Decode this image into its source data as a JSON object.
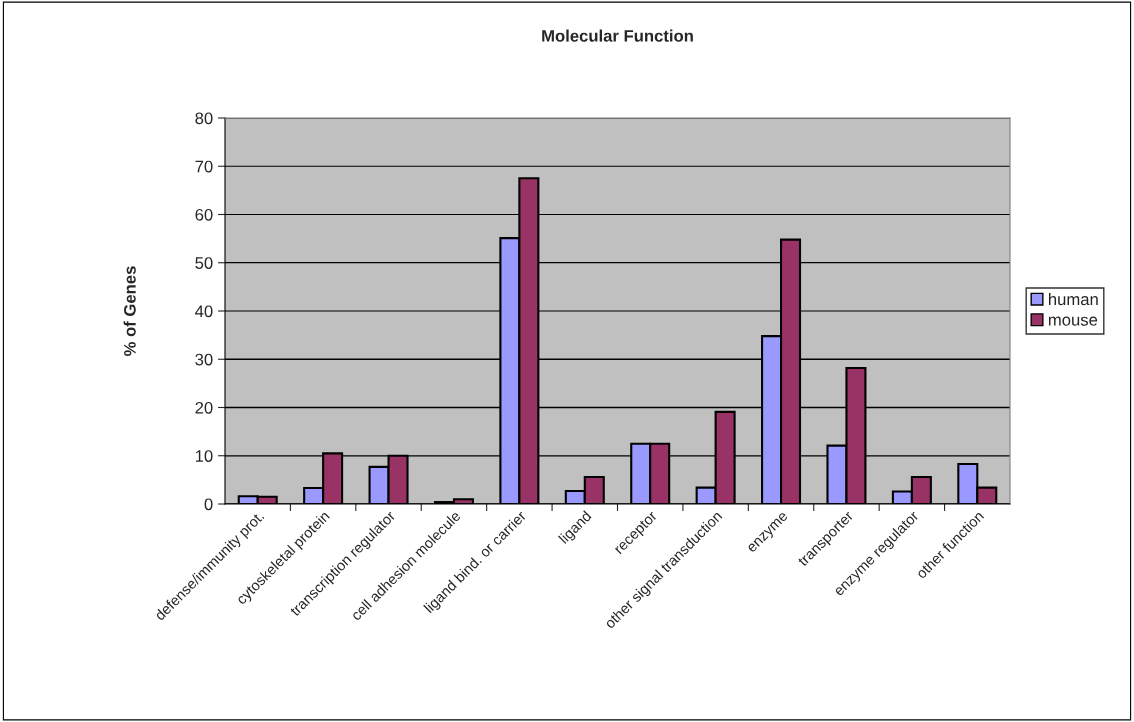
{
  "chart_data": {
    "type": "bar",
    "title": "Molecular Function",
    "ylabel": "% of Genes",
    "categories": [
      "defense/immunity prot.",
      "cytoskeletal protein",
      "transcription regulator",
      "cell adhesion molecule",
      "ligand bind. or carrier",
      "ligand",
      "receptor",
      "other signal transduction",
      "enzyme",
      "transporter",
      "enzyme regulator",
      "other function"
    ],
    "series": [
      {
        "name": "human",
        "color": "#9999ff",
        "values": [
          1.6,
          3.3,
          7.7,
          0.4,
          55.1,
          2.7,
          12.5,
          3.4,
          34.8,
          12.1,
          2.6,
          8.3
        ]
      },
      {
        "name": "mouse",
        "color": "#993366",
        "values": [
          1.5,
          10.5,
          10.0,
          1.0,
          67.5,
          5.6,
          12.5,
          19.1,
          54.8,
          28.2,
          5.6,
          3.4
        ]
      }
    ],
    "ylim": [
      0,
      80
    ],
    "yticks": [
      0,
      10,
      20,
      30,
      40,
      50,
      60,
      70,
      80
    ],
    "grid": "y",
    "legend": "right"
  }
}
